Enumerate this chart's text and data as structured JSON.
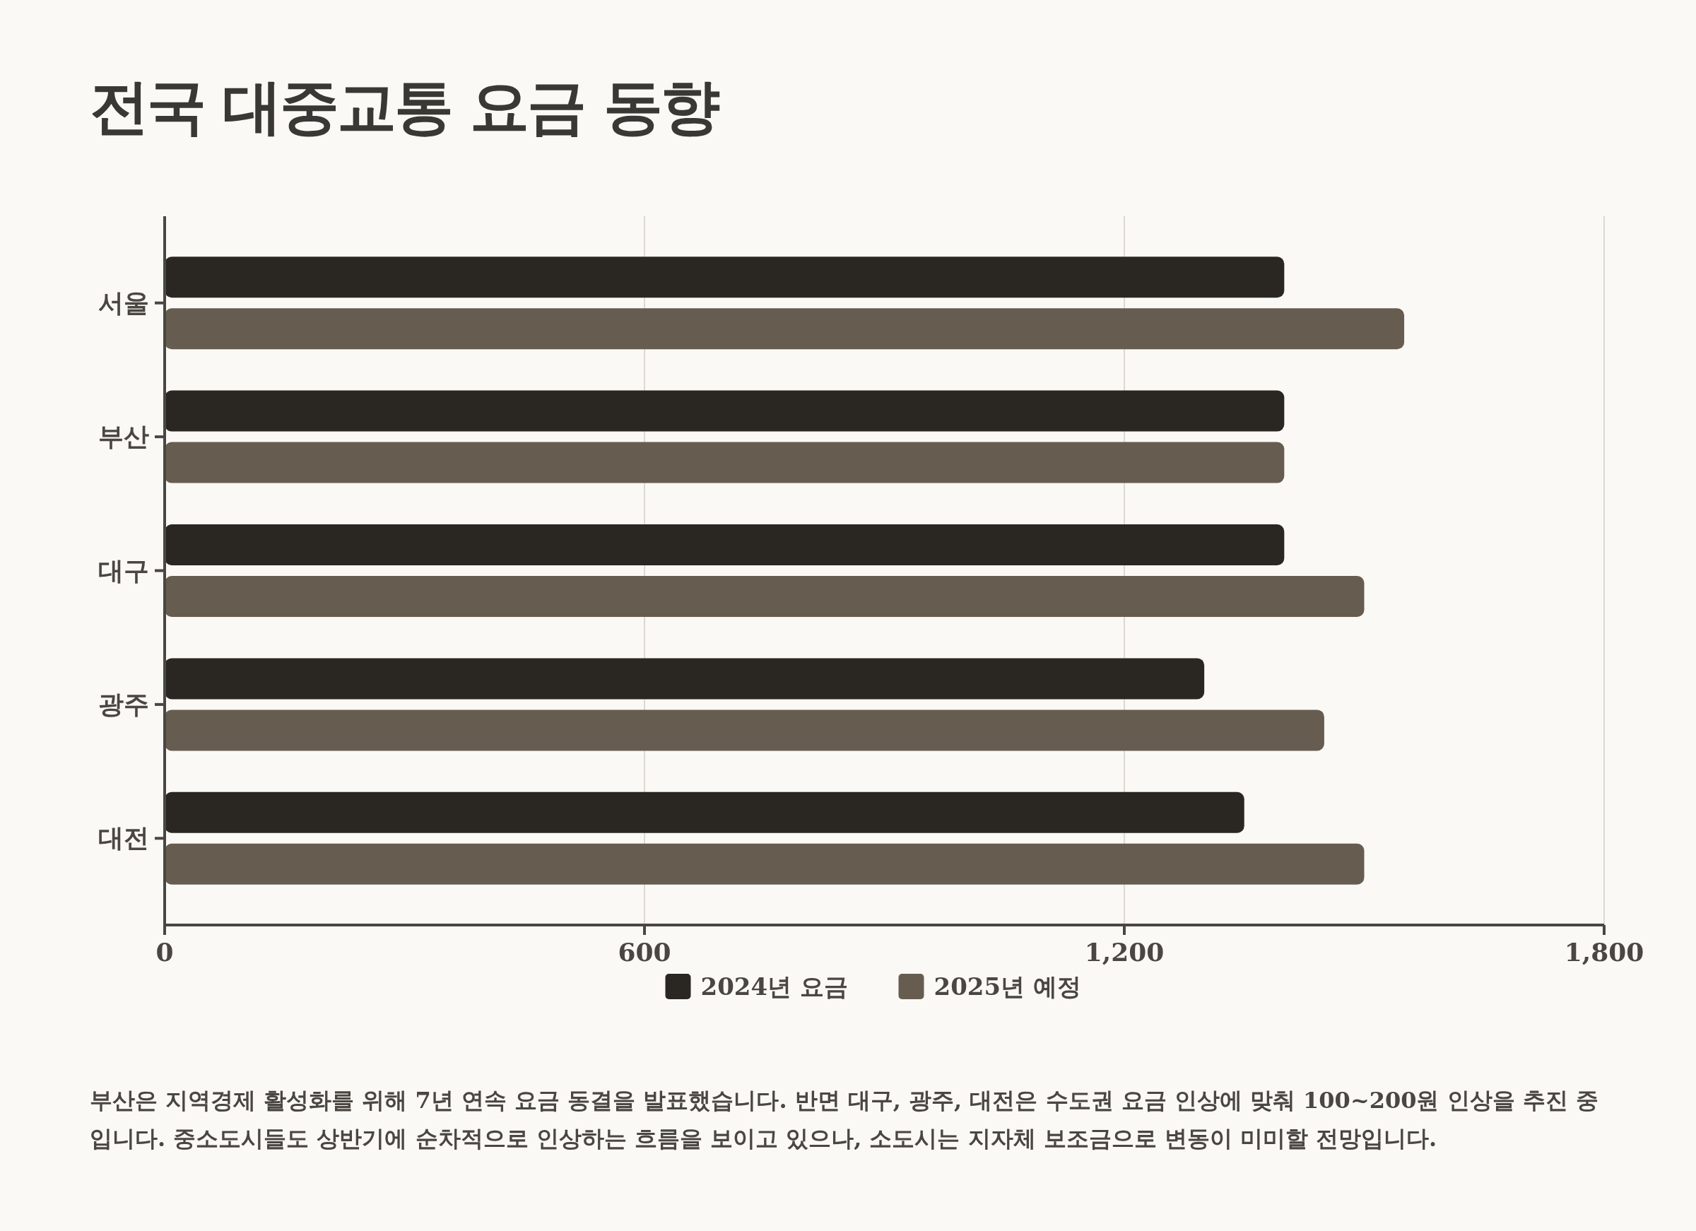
{
  "chart_data": {
    "type": "bar",
    "orientation": "horizontal",
    "title": "전국 대중교통 요금 동향",
    "categories": [
      "서울",
      "부산",
      "대구",
      "광주",
      "대전"
    ],
    "series": [
      {
        "name": "2024년 요금",
        "color": "#2a2723",
        "values": [
          1400,
          1400,
          1400,
          1300,
          1350
        ]
      },
      {
        "name": "2025년 예정",
        "color": "#665d50",
        "values": [
          1550,
          1400,
          1500,
          1450,
          1500
        ]
      }
    ],
    "xlim": [
      0,
      1800
    ],
    "xticks": [
      0,
      {
        "value": 600,
        "label": "600"
      },
      {
        "value": 1200,
        "label": "1,200"
      },
      {
        "value": 1800,
        "label": "1,800"
      }
    ],
    "grid": "x",
    "legend": "bottom",
    "annotations": [
      "부산은 지역경제 활성화를 위해 7년 연속 요금 동결을 발표했습니다. 반면 대구, 광주, 대전은 수도권 요금 인상에 맞춰 100~200원 인상을 추진 중입니다. 중소도시들도 상반기에 순차적으로 인상하는 흐름을 보이고 있으나, 소도시는 지자체 보조금으로 변동이 미미할 전망입니다."
    ]
  }
}
